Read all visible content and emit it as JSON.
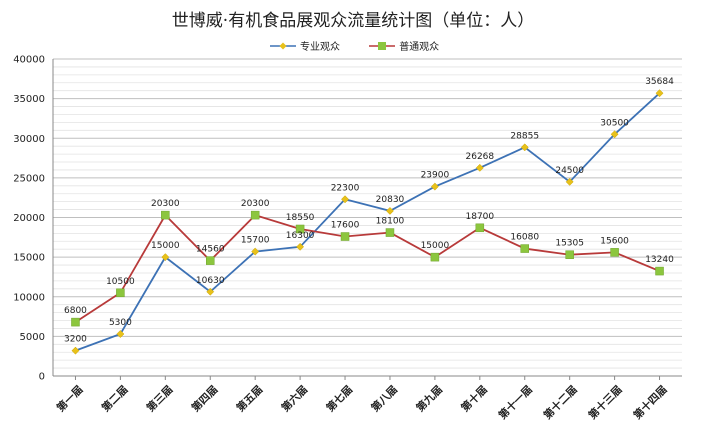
{
  "chart_data": {
    "type": "line",
    "title": "世博威·有机食品展观众流量统计图（单位：人）",
    "categories": [
      "第一届",
      "第二届",
      "第三届",
      "第四届",
      "第五届",
      "第六届",
      "第七届",
      "第八届",
      "第九届",
      "第十届",
      "第十一届",
      "第十二届",
      "第十三届",
      "第十四届"
    ],
    "series": [
      {
        "name": "专业观众",
        "color": "#3d72b5",
        "marker_color": "#e8c11a",
        "marker": "diamond",
        "values": [
          3200,
          5300,
          15000,
          10630,
          15700,
          16300,
          22300,
          20830,
          23900,
          26268,
          28855,
          24500,
          30500,
          35684
        ]
      },
      {
        "name": "普通观众",
        "color": "#b83a3a",
        "marker_color": "#8cc63e",
        "marker": "square",
        "values": [
          6800,
          10500,
          20300,
          14560,
          20300,
          18550,
          17600,
          18100,
          15000,
          18700,
          16080,
          15305,
          15600,
          13240
        ]
      }
    ],
    "ylim": [
      0,
      40000
    ],
    "yticks": [
      0,
      5000,
      10000,
      15000,
      20000,
      25000,
      30000,
      35000,
      40000
    ],
    "grid": true,
    "legend_position": "top",
    "xlabel": "",
    "ylabel": ""
  }
}
